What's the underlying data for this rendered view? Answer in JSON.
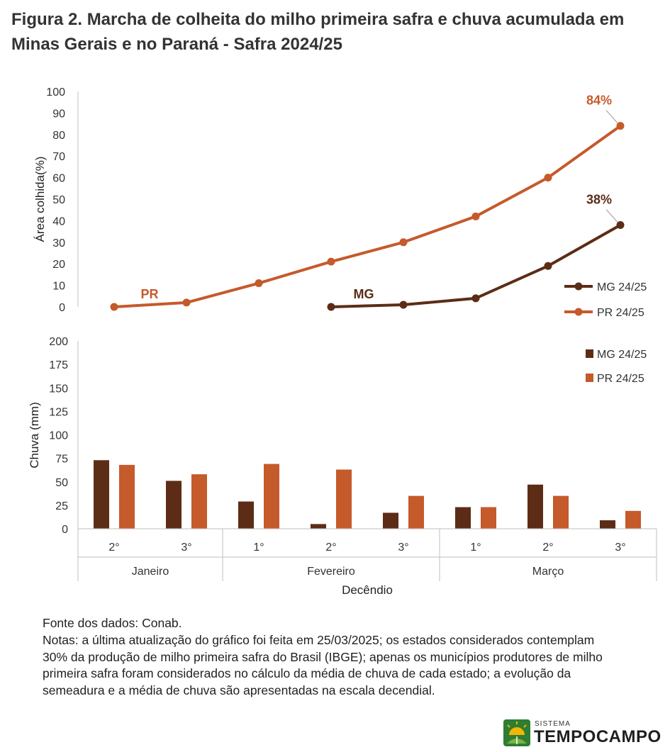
{
  "figure": {
    "title": "Figura 2. Marcha de colheita do milho primeira safra e chuva acumulada em Minas Gerais e no Paraná - Safra 2024/25"
  },
  "chart_data": [
    {
      "type": "line",
      "ylabel": "Área colhida(%)",
      "ylim": [
        0,
        100
      ],
      "yticks": [
        "0",
        "10",
        "20",
        "30",
        "40",
        "50",
        "60",
        "70",
        "80",
        "90",
        "100"
      ],
      "legend_position": "right",
      "series": [
        {
          "name": "MG 24/25",
          "color": "#5c2c16",
          "start_index": 3,
          "values": [
            0,
            1,
            4,
            19,
            38
          ],
          "inline_label": "MG",
          "end_label": "38%"
        },
        {
          "name": "PR 24/25",
          "color": "#c55a2b",
          "start_index": 0,
          "values": [
            0,
            2,
            11,
            21,
            30,
            42,
            60,
            84
          ],
          "inline_label": "PR",
          "end_label": "84%"
        }
      ]
    },
    {
      "type": "bar",
      "ylabel": "Chuva (mm)",
      "ylim": [
        0,
        200
      ],
      "yticks": [
        "0",
        "25",
        "50",
        "75",
        "100",
        "125",
        "150",
        "175",
        "200"
      ],
      "legend_position": "top-right",
      "xlabel": "Decêndio",
      "categories": [
        "2°",
        "3°",
        "1°",
        "2°",
        "3°",
        "1°",
        "2°",
        "3°"
      ],
      "groups": [
        {
          "label": "Janeiro",
          "count": 2
        },
        {
          "label": "Fevereiro",
          "count": 3
        },
        {
          "label": "Março",
          "count": 3
        }
      ],
      "series": [
        {
          "name": "MG 24/25",
          "color": "#5c2c16",
          "values": [
            73,
            51,
            29,
            5,
            17,
            23,
            47,
            9
          ]
        },
        {
          "name": "PR 24/25",
          "color": "#c55a2b",
          "values": [
            68,
            58,
            69,
            63,
            35,
            23,
            35,
            19
          ]
        }
      ]
    }
  ],
  "notes": {
    "source": "Fonte dos dados: Conab.",
    "text": "Notas: a última atualização do gráfico foi feita em 25/03/2025; os estados considerados contemplam 30% da produção de milho primeira safra do Brasil (IBGE); apenas os municípios produtores de milho primeira safra foram considerados no cálculo da média de chuva de cada estado; a evolução da semeadura e a média de chuva são apresentadas na escala decendial."
  },
  "logo": {
    "system": "SISTEMA",
    "name": "TEMPOCAMPO",
    "colors": [
      "#2e7d32",
      "#f2b705",
      "#7cb342"
    ]
  }
}
